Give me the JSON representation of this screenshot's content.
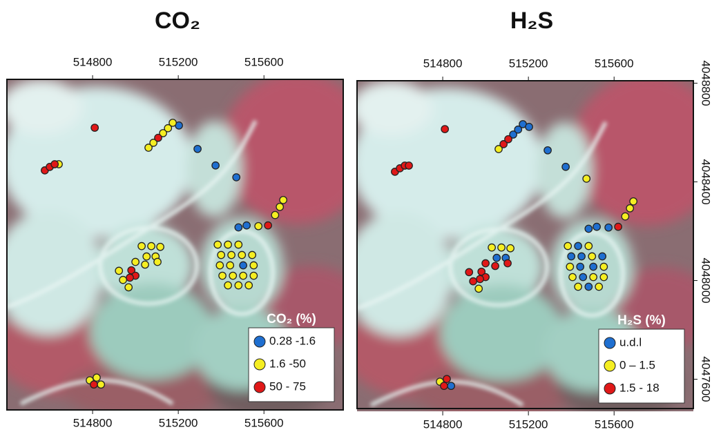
{
  "chart_data": [
    {
      "type": "scatter",
      "title": "CO₂",
      "legend_title": "CO₂ (%)",
      "xlim": [
        514400,
        515970
      ],
      "ylim": [
        4047470,
        4048810
      ],
      "xticks": [
        514800,
        515200,
        515600
      ],
      "series": [
        {
          "name": "0.28 -1.6",
          "color": "#1f6fd0",
          "x": [
            515203,
            515290,
            515374,
            515471,
            515481,
            515519,
            515503
          ],
          "y": [
            4048623,
            4048528,
            4048461,
            4048413,
            4048210,
            4048218,
            4048056
          ]
        },
        {
          "name": "1.6 -50",
          "color": "#f5ee22",
          "x": [
            514642,
            515061,
            515084,
            515129,
            515152,
            515174,
            515574,
            515652,
            515674,
            515690,
            515029,
            515074,
            515116,
            515052,
            515094,
            515000,
            515045,
            515103,
            514923,
            514942,
            514968,
            515384,
            515432,
            515481,
            515400,
            515448,
            515497,
            515545,
            515394,
            515442,
            515552,
            515406,
            515455,
            515503,
            515552,
            515432,
            515481,
            515529,
            514787,
            514819,
            514839
          ],
          "y": [
            4048466,
            4048533,
            4048553,
            4048592,
            4048612,
            4048634,
            4048215,
            4048260,
            4048293,
            4048321,
            4048134,
            4048134,
            4048131,
            4048092,
            4048092,
            4048070,
            4048059,
            4048070,
            4048034,
            4047997,
            4047967,
            4048140,
            4048140,
            4048140,
            4048098,
            4048098,
            4048098,
            4048098,
            4048056,
            4048056,
            4048056,
            4048014,
            4048014,
            4048014,
            4048014,
            4047975,
            4047975,
            4047975,
            4047590,
            4047601,
            4047573
          ]
        },
        {
          "name": "50 - 75",
          "color": "#e01818",
          "x": [
            514810,
            514577,
            514600,
            514623,
            515106,
            515619,
            514981,
            515000,
            514974,
            514806
          ],
          "y": [
            4048614,
            4048441,
            4048455,
            4048466,
            4048573,
            4048218,
            4048036,
            4048014,
            4048006,
            4047573
          ]
        }
      ]
    },
    {
      "type": "scatter",
      "title": "H₂S",
      "legend_title": "H₂S (%)",
      "xlim": [
        514400,
        515970
      ],
      "ylim": [
        4047470,
        4048810
      ],
      "xticks": [
        514800,
        515200,
        515600
      ],
      "yticks": [
        4047600,
        4048000,
        4048400,
        4048800
      ],
      "series": [
        {
          "name": "u.d.l",
          "color": "#1f6fd0",
          "x": [
            515129,
            515152,
            515174,
            515203,
            515290,
            515374,
            515481,
            515519,
            515574,
            515052,
            515094,
            515432,
            515400,
            515448,
            515442,
            515503,
            515455,
            515481,
            515545,
            514839
          ],
          "y": [
            4048592,
            4048612,
            4048634,
            4048623,
            4048528,
            4048461,
            4048210,
            4048218,
            4048215,
            4048092,
            4048092,
            4048140,
            4048098,
            4048098,
            4048056,
            4048056,
            4048014,
            4047975,
            4048098,
            4047573
          ]
        },
        {
          "name": "0 – 1.5",
          "color": "#f5ee22",
          "x": [
            515471,
            515061,
            515652,
            515674,
            515690,
            515029,
            515074,
            515116,
            514968,
            515384,
            515481,
            515497,
            515394,
            515552,
            515406,
            515503,
            515552,
            515432,
            515529,
            514787
          ],
          "y": [
            4048413,
            4048533,
            4048260,
            4048293,
            4048321,
            4048134,
            4048134,
            4048131,
            4047967,
            4048140,
            4048140,
            4048098,
            4048056,
            4048056,
            4048014,
            4048014,
            4048014,
            4047975,
            4047975,
            4047590
          ]
        },
        {
          "name": "1.5 - 18",
          "color": "#e01818",
          "x": [
            514810,
            514577,
            514600,
            514623,
            514642,
            515084,
            515106,
            515619,
            515000,
            515045,
            515103,
            514923,
            514942,
            514981,
            515000,
            514974,
            514806,
            514819
          ],
          "y": [
            4048614,
            4048441,
            4048455,
            4048466,
            4048466,
            4048553,
            4048573,
            4048218,
            4048070,
            4048059,
            4048070,
            4048034,
            4047997,
            4048036,
            4048014,
            4048006,
            4047573,
            4047601
          ]
        }
      ]
    }
  ]
}
